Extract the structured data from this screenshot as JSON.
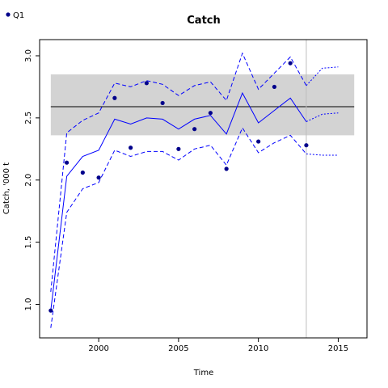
{
  "chart_data": {
    "type": "line",
    "title": "Catch",
    "xlabel": "Time",
    "ylabel": "Catch, '000 t",
    "xlim": [
      1996.3,
      2016.8
    ],
    "ylim": [
      0.73,
      3.13
    ],
    "xticks": [
      2000,
      2005,
      2010,
      2015
    ],
    "yticks": [
      1.0,
      1.5,
      2.0,
      2.5,
      3.0
    ],
    "ytick_labels": [
      "1.0",
      "1.5",
      "2.0",
      "2.5",
      "3.0"
    ],
    "grid": false,
    "legend_position": "top-left",
    "band": {
      "x": [
        1997,
        2016
      ],
      "y": [
        2.36,
        2.85
      ],
      "color": "#d3d3d3"
    },
    "hline": {
      "y": 2.59,
      "color": "#000000"
    },
    "vline": {
      "x": 2013,
      "color": "#bebebe"
    },
    "series": [
      {
        "name": "Q1",
        "kind": "points",
        "color": "#00008b",
        "x": [
          1997,
          1998,
          1999,
          2000,
          2001,
          2002,
          2003,
          2004,
          2005,
          2006,
          2007,
          2008,
          2010,
          2011,
          2012,
          2013
        ],
        "y": [
          0.95,
          2.14,
          2.06,
          2.02,
          2.66,
          2.26,
          2.78,
          2.62,
          2.25,
          2.41,
          2.54,
          2.09,
          2.31,
          2.75,
          2.94,
          2.28
        ]
      },
      {
        "kind": "line",
        "style": "solid",
        "color": "#0000ff",
        "x": [
          1997,
          1998,
          1999,
          2000,
          2001,
          2002,
          2003,
          2004,
          2005,
          2006,
          2007,
          2008,
          2009,
          2010,
          2011,
          2012,
          2013
        ],
        "y": [
          0.95,
          2.03,
          2.19,
          2.24,
          2.49,
          2.45,
          2.5,
          2.49,
          2.41,
          2.49,
          2.52,
          2.37,
          2.7,
          2.46,
          2.56,
          2.66,
          2.47
        ]
      },
      {
        "kind": "line",
        "style": "dashed",
        "color": "#0000ff",
        "x": [
          1997,
          1998,
          1999,
          2000,
          2001,
          2002,
          2003,
          2004,
          2005,
          2006,
          2007,
          2008,
          2009,
          2010,
          2011,
          2012,
          2013
        ],
        "y": [
          1.1,
          2.38,
          2.48,
          2.54,
          2.78,
          2.75,
          2.8,
          2.77,
          2.68,
          2.76,
          2.79,
          2.64,
          3.02,
          2.73,
          2.86,
          2.99,
          2.76
        ]
      },
      {
        "kind": "line",
        "style": "dashed",
        "color": "#0000ff",
        "x": [
          1997,
          1998,
          1999,
          2000,
          2001,
          2002,
          2003,
          2004,
          2005,
          2006,
          2007,
          2008,
          2009,
          2010,
          2011,
          2012,
          2013
        ],
        "y": [
          0.81,
          1.74,
          1.93,
          1.98,
          2.24,
          2.19,
          2.23,
          2.23,
          2.16,
          2.25,
          2.28,
          2.12,
          2.42,
          2.22,
          2.3,
          2.36,
          2.21
        ]
      },
      {
        "kind": "line",
        "style": "dotted",
        "color": "#0000ff",
        "x": [
          2013,
          2014,
          2015
        ],
        "y": [
          2.47,
          2.53,
          2.54
        ]
      },
      {
        "kind": "line",
        "style": "dotted",
        "color": "#0000ff",
        "x": [
          2013,
          2014,
          2015
        ],
        "y": [
          2.76,
          2.9,
          2.91
        ]
      },
      {
        "kind": "line",
        "style": "dotted",
        "color": "#0000ff",
        "x": [
          2013,
          2014,
          2015
        ],
        "y": [
          2.21,
          2.2,
          2.2
        ]
      }
    ]
  }
}
